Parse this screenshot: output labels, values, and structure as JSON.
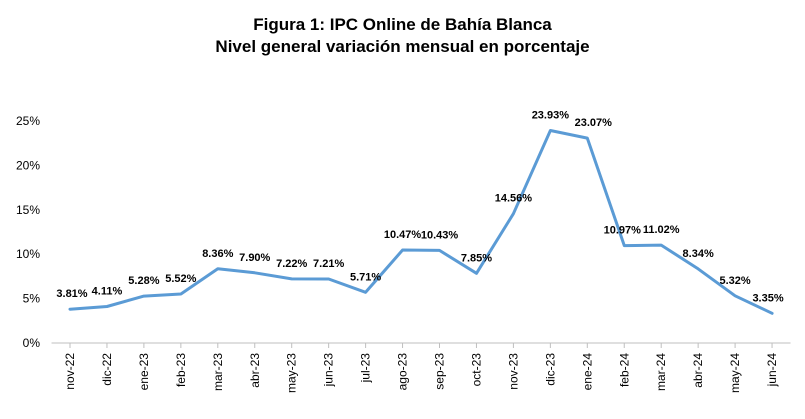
{
  "chart_data": {
    "type": "line",
    "title": "Figura 1: IPC Online de Bahía Blanca",
    "subtitle": "Nivel general variación mensual en porcentaje",
    "categories": [
      "nov-22",
      "dic-22",
      "ene-23",
      "feb-23",
      "mar-23",
      "abr-23",
      "may-23",
      "jun-23",
      "jul-23",
      "ago-23",
      "sep-23",
      "oct-23",
      "nov-23",
      "dic-23",
      "ene-24",
      "feb-24",
      "mar-24",
      "abr-24",
      "may-24",
      "jun-24"
    ],
    "series": [
      {
        "values": [
          3.81,
          4.11,
          5.28,
          5.52,
          8.36,
          7.9,
          7.22,
          7.21,
          5.71,
          10.47,
          10.43,
          7.85,
          14.56,
          23.93,
          23.07,
          10.97,
          11.02,
          8.34,
          5.32,
          3.35
        ],
        "labels": [
          "3.81%",
          "4.11%",
          "5.28%",
          "5.52%",
          "8.36%",
          "7.90%",
          "7.22%",
          "7.21%",
          "5.71%",
          "10.47%",
          "10.43%",
          "7.85%",
          "14.56%",
          "23.93%",
          "23.07%",
          "10.97%",
          "11.02%",
          "8.34%",
          "5.32%",
          "3.35%"
        ],
        "color": "#5b9bd5"
      }
    ],
    "yticks": [
      "0%",
      "5%",
      "10%",
      "15%",
      "20%",
      "25%"
    ],
    "ylim": [
      0,
      25
    ],
    "grid": false,
    "legend": "none"
  }
}
